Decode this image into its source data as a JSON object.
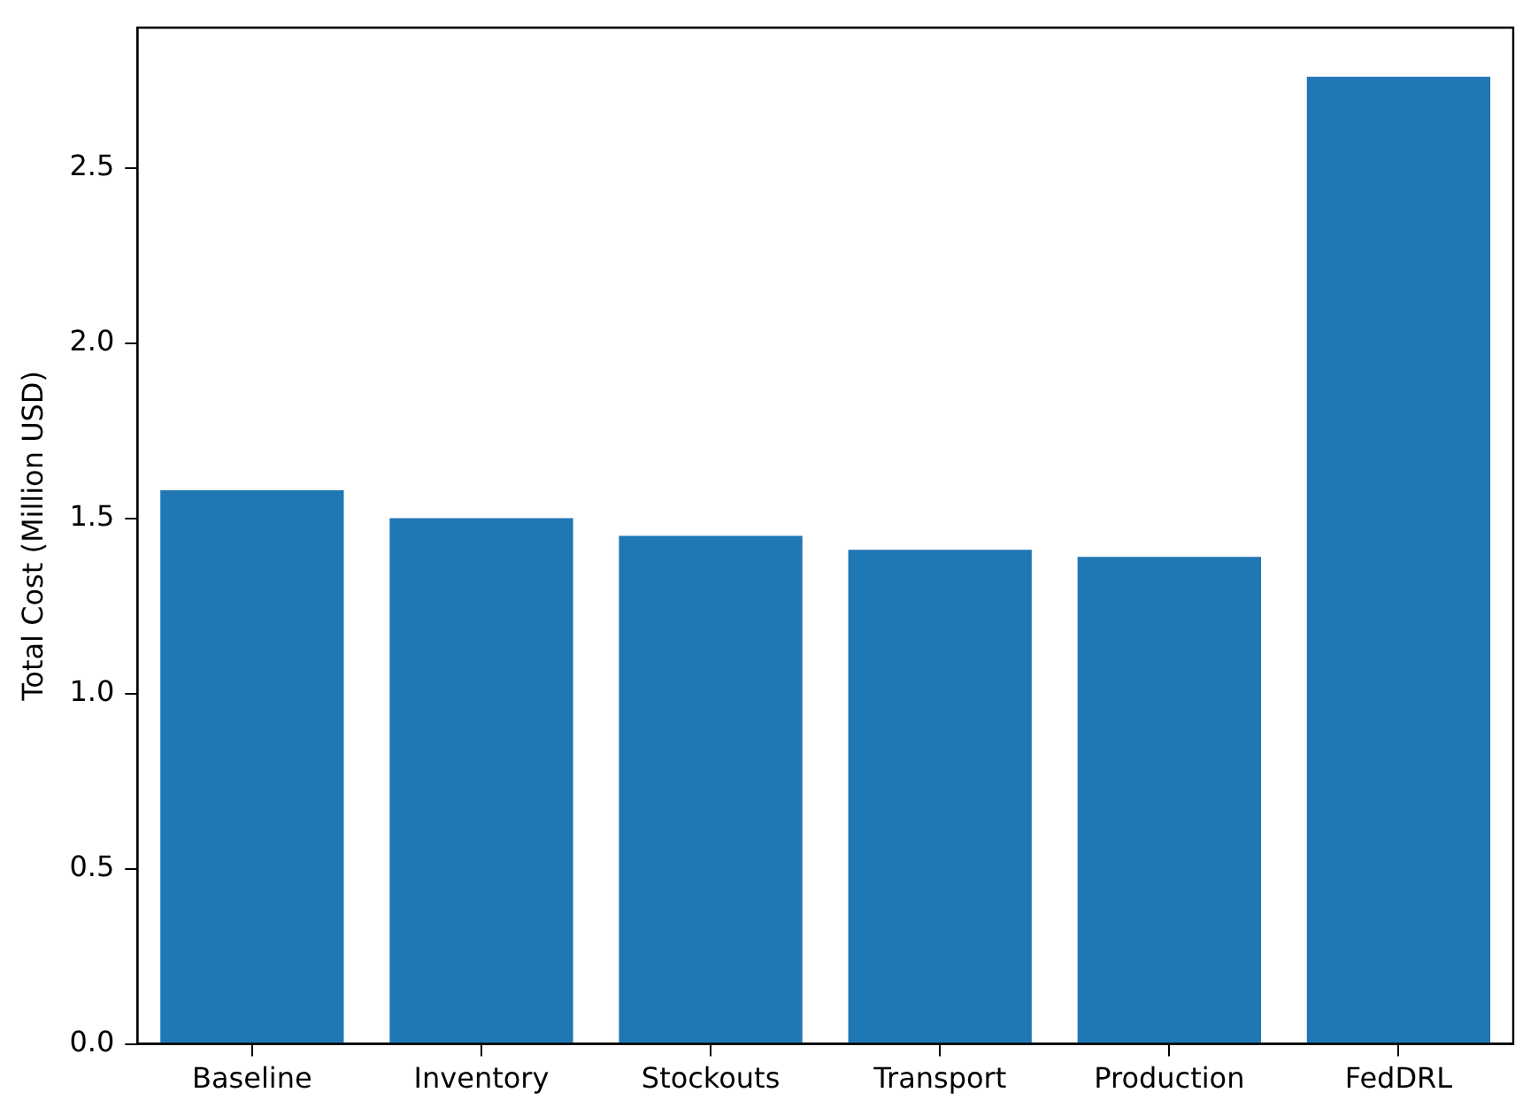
{
  "chart_data": {
    "type": "bar",
    "ylabel": "Total Cost (Million USD)",
    "categories": [
      "Baseline",
      "Inventory",
      "Stockouts",
      "Transport",
      "Production",
      "FedDRL"
    ],
    "values": [
      1.58,
      1.5,
      1.45,
      1.41,
      1.39,
      2.76
    ],
    "color": "#1f77b4",
    "ylim": [
      0,
      2.9
    ],
    "yticks": [
      {
        "value": 0,
        "label": "0.0"
      },
      {
        "value": 0.5,
        "label": "0.5"
      },
      {
        "value": 1,
        "label": "1.0"
      },
      {
        "value": 1.5,
        "label": "1.5"
      },
      {
        "value": 2,
        "label": "2.0"
      },
      {
        "value": 2.5,
        "label": "2.5"
      }
    ],
    "grid": false
  }
}
